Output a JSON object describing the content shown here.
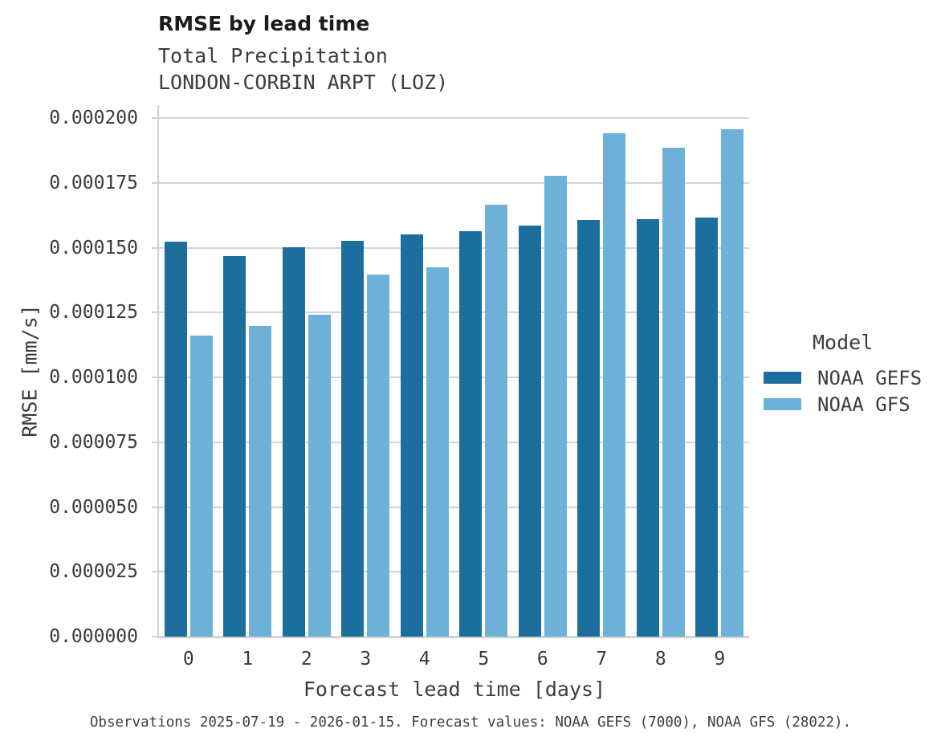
{
  "chart_data": {
    "type": "bar",
    "title": "RMSE by lead time",
    "subtitle_variable": "Total Precipitation",
    "subtitle_station": "LONDON-CORBIN ARPT (LOZ)",
    "xlabel": "Forecast lead time [days]",
    "ylabel": "RMSE [mm/s]",
    "categories": [
      "0",
      "1",
      "2",
      "3",
      "4",
      "5",
      "6",
      "7",
      "8",
      "9"
    ],
    "series": [
      {
        "name": "NOAA GEFS",
        "color": "#1c6e9c",
        "values": [
          0.0001523,
          0.0001468,
          0.0001503,
          0.0001528,
          0.0001551,
          0.0001564,
          0.0001586,
          0.0001607,
          0.0001609,
          0.0001618
        ]
      },
      {
        "name": "NOAA GFS",
        "color": "#6db1d8",
        "values": [
          0.0001161,
          0.00012,
          0.0001243,
          0.0001396,
          0.0001424,
          0.0001667,
          0.0001777,
          0.0001943,
          0.0001887,
          0.0001958
        ]
      }
    ],
    "ylim": [
      0,
      0.000205
    ],
    "yticks": [
      {
        "value": 0.0,
        "label": "0.000000"
      },
      {
        "value": 2.5e-05,
        "label": "0.000025"
      },
      {
        "value": 5e-05,
        "label": "0.000050"
      },
      {
        "value": 7.5e-05,
        "label": "0.000075"
      },
      {
        "value": 0.0001,
        "label": "0.000100"
      },
      {
        "value": 0.000125,
        "label": "0.000125"
      },
      {
        "value": 0.00015,
        "label": "0.000150"
      },
      {
        "value": 0.000175,
        "label": "0.000175"
      },
      {
        "value": 0.0002,
        "label": "0.000200"
      }
    ],
    "grid": true,
    "legend_position": "right"
  },
  "legend": {
    "title": "Model",
    "items": [
      {
        "label": "NOAA GEFS",
        "color": "#1c6e9c"
      },
      {
        "label": "NOAA GFS",
        "color": "#6db1d8"
      }
    ]
  },
  "caption": "Observations 2025-07-19 - 2026-01-15. Forecast values: NOAA GEFS (7000), NOAA GFS (28022).",
  "colors": {
    "grid": "#d4d4d4",
    "spine": "#cfcfcf",
    "bar_dark": "#1c6e9c",
    "bar_light": "#6db1d8"
  }
}
